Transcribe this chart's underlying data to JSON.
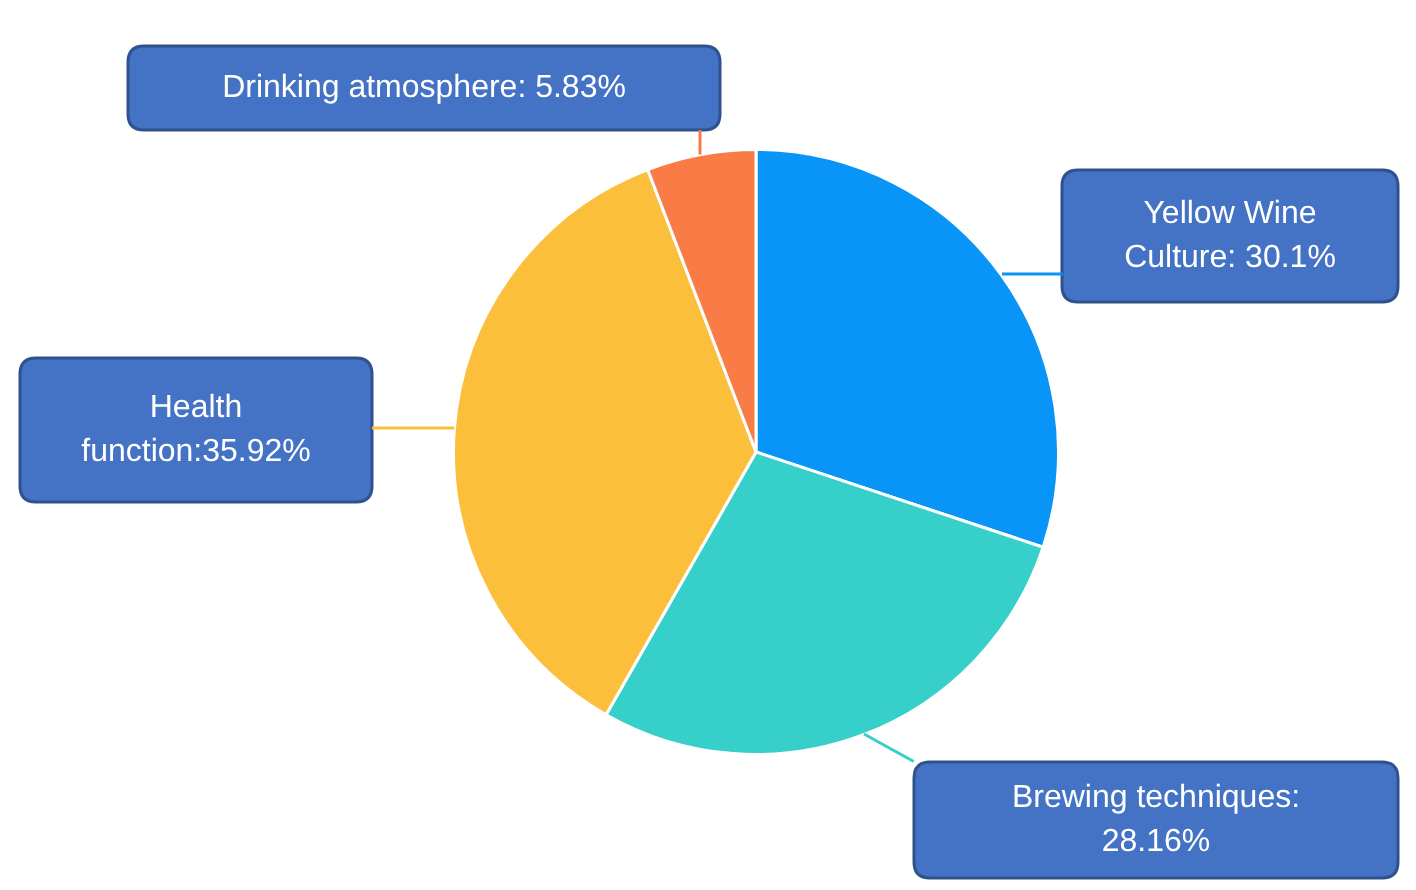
{
  "chart_data": {
    "type": "pie",
    "categories": [
      "Yellow Wine Culture",
      "Brewing techniques",
      "Health function",
      "Drinking atmosphere"
    ],
    "values": [
      30.1,
      28.16,
      35.92,
      5.83
    ],
    "colors": [
      "#0995f7",
      "#36cfc9",
      "#fbbf3c",
      "#f97b45"
    ],
    "value_labels": [
      ": 30.1%",
      ": 28.16%",
      ":35.92%",
      ": 5.83%"
    ]
  }
}
